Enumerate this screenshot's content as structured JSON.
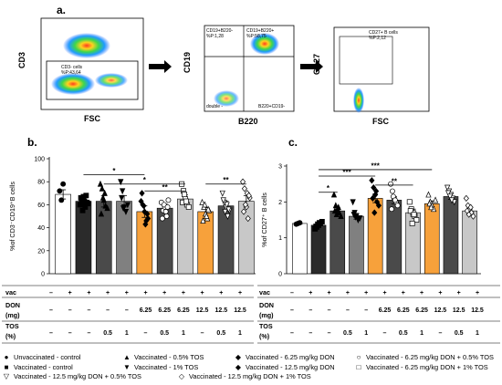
{
  "figure": {
    "panel_a": {
      "label": "a.",
      "plots": [
        {
          "ylabel": "CD3",
          "xlabel": "FSC",
          "gate_text": "CD3- cells\n%P:43,64"
        },
        {
          "ylabel": "CD19",
          "xlabel": "B220",
          "quad_texts": {
            "ul": "CD19+B220-\n%P:1,28",
            "ur": "CD19+B220+\n%P:58,75",
            "ll": "double -",
            "lr": "B220+CD19-"
          }
        },
        {
          "ylabel": "CD27",
          "xlabel": "FSC",
          "gate_text": "CD27+ B cells\n%P:2,12"
        }
      ]
    },
    "panel_b": {
      "label": "b.",
      "ylabel": "%of CD3⁻CD19⁺B cells"
    },
    "panel_c": {
      "label": "c.",
      "ylabel": "%of CD27⁺ B cells"
    },
    "table": {
      "row_labels": [
        "vac",
        "DON",
        "(mg)",
        "TOS",
        "(%)"
      ],
      "vac": [
        "–",
        "+",
        "+",
        "+",
        "+",
        "+",
        "+",
        "+",
        "+",
        "+",
        "+"
      ],
      "don": [
        "–",
        "–",
        "–",
        "–",
        "–",
        "6.25",
        "6.25",
        "6.25",
        "12.5",
        "12.5",
        "12.5"
      ],
      "tos": [
        "–",
        "–",
        "–",
        "0.5",
        "1",
        "–",
        "0.5",
        "1",
        "–",
        "0.5",
        "1"
      ]
    },
    "legend": [
      {
        "symbol": "●",
        "text": "Unvaccinated - control"
      },
      {
        "symbol": "▲",
        "text": "Vaccinated - 0.5% TOS"
      },
      {
        "symbol": "◆",
        "text": "Vaccinated - 6.25 mg/kg DON"
      },
      {
        "symbol": "○",
        "text": "Vaccinated - 6.25 mg/kg DON + 0.5% TOS"
      },
      {
        "symbol": "■",
        "text": "Vaccinated - control"
      },
      {
        "symbol": "▼",
        "text": "Vaccinated - 1%   TOS"
      },
      {
        "symbol": "◆",
        "text": "Vaccinated - 12.5 mg/kg DON"
      },
      {
        "symbol": "□",
        "text": "Vaccinated - 6.25 mg/kg DON + 1%  TOS"
      },
      {
        "symbol": "▽",
        "text": "Vaccinated - 12.5 mg/kg DON + 0.5% TOS"
      },
      {
        "symbol": "◇",
        "text": "Vaccinated - 12.5 mg/kg DON + 1%  TOS"
      }
    ],
    "colors": {
      "white": "#ffffff",
      "black": "#2b2b2b",
      "dark": "#4a4a4a",
      "mid": "#808080",
      "light": "#c8c8c8",
      "orange": "#f7a13b"
    }
  },
  "chart_data": [
    {
      "type": "bar",
      "panel": "b",
      "ylabel": "%of CD3⁻CD19⁺B cells",
      "ylim": [
        0,
        100
      ],
      "yticks": [
        0,
        20,
        40,
        60,
        80,
        100
      ],
      "groups": [
        "unvac-control",
        "vac-control",
        "vac-0.5TOS",
        "vac-1TOS",
        "vac-6.25DON",
        "vac-6.25DON+0.5TOS",
        "vac-6.25DON+1TOS",
        "vac-12.5DON",
        "vac-12.5DON+0.5TOS",
        "vac-12.5DON+1TOS"
      ],
      "values": [
        69,
        63,
        63,
        63,
        54,
        57,
        65,
        54,
        59,
        63
      ],
      "errors": [
        4,
        2.5,
        5,
        5,
        5,
        3.5,
        3.5,
        3.5,
        4,
        5
      ],
      "fills": [
        "white",
        "black",
        "dark",
        "mid",
        "orange",
        "dark",
        "light",
        "orange",
        "dark",
        "light"
      ],
      "markers": [
        "circle",
        "square",
        "triangle",
        "triangle-down",
        "diamond",
        "circle-open",
        "square-open",
        "triangle-open",
        "triangle-down-open",
        "diamond-open"
      ],
      "points": [
        [
          72,
          64,
          78
        ],
        [
          60,
          64,
          67,
          58,
          62,
          66,
          55,
          63,
          68,
          61
        ],
        [
          78,
          74,
          64,
          59,
          57,
          52,
          66,
          70
        ],
        [
          80,
          72,
          58,
          54,
          60,
          66,
          57
        ],
        [
          63,
          60,
          54,
          46,
          48,
          70,
          59,
          43,
          52
        ],
        [
          62,
          55,
          58,
          50,
          64,
          48,
          60,
          54,
          58
        ],
        [
          78,
          72,
          65,
          60,
          58,
          62,
          69,
          63
        ],
        [
          62,
          58,
          52,
          48,
          55,
          46,
          60,
          50,
          56
        ],
        [
          70,
          62,
          58,
          50,
          55,
          64,
          54,
          60,
          56
        ],
        [
          80,
          74,
          58,
          48,
          66,
          54,
          60,
          70,
          68
        ]
      ],
      "significance": [
        {
          "label": "*",
          "from": 1,
          "to": 4,
          "y": 86
        },
        {
          "label": "*",
          "from": 2,
          "to": 6,
          "y": 78
        },
        {
          "label": "**",
          "from": 4,
          "to": 6,
          "y": 72
        },
        {
          "label": "**",
          "from": 7,
          "to": 9,
          "y": 78
        }
      ]
    },
    {
      "type": "bar",
      "panel": "c",
      "ylabel": "%of CD27⁺ B cells",
      "ylim": [
        0,
        3
      ],
      "yticks": [
        0,
        1,
        2,
        3
      ],
      "groups": [
        "unvac-control",
        "vac-control",
        "vac-0.5TOS",
        "vac-1TOS",
        "vac-6.25DON",
        "vac-6.25DON+0.5TOS",
        "vac-6.25DON+1TOS",
        "vac-12.5DON",
        "vac-12.5DON+0.5TOS",
        "vac-12.5DON+1TOS"
      ],
      "values": [
        1.4,
        1.35,
        1.75,
        1.6,
        2.1,
        2.05,
        1.7,
        1.95,
        2.15,
        1.75
      ],
      "errors": [
        0.02,
        0.05,
        0.1,
        0.08,
        0.12,
        0.1,
        0.1,
        0.08,
        0.08,
        0.08
      ],
      "fills": [
        "white",
        "black",
        "dark",
        "mid",
        "orange",
        "dark",
        "light",
        "orange",
        "dark",
        "light"
      ],
      "markers": [
        "circle",
        "square",
        "triangle",
        "triangle-down",
        "diamond",
        "circle-open",
        "square-open",
        "triangle-open",
        "triangle-down-open",
        "diamond-open"
      ],
      "points": [
        [
          1.38,
          1.4,
          1.42
        ],
        [
          1.25,
          1.3,
          1.35,
          1.4,
          1.45,
          1.32,
          1.38,
          1.42
        ],
        [
          2.2,
          1.9,
          1.8,
          1.7,
          1.6,
          1.75,
          1.65,
          1.85
        ],
        [
          2.0,
          1.7,
          1.6,
          1.5,
          1.55,
          1.65,
          1.58
        ],
        [
          2.6,
          2.4,
          2.2,
          2.0,
          1.9,
          2.1,
          1.7,
          2.3
        ],
        [
          2.5,
          2.3,
          2.1,
          2.0,
          1.9,
          1.8,
          2.15,
          2.05
        ],
        [
          2.0,
          1.8,
          1.7,
          1.6,
          1.5,
          1.75,
          1.4,
          1.65
        ],
        [
          2.2,
          2.0,
          1.9,
          1.8,
          2.05,
          1.95,
          1.85
        ],
        [
          2.4,
          2.3,
          2.2,
          2.1,
          2.0,
          2.25,
          2.15,
          2.05
        ],
        [
          2.1,
          1.9,
          1.8,
          1.7,
          1.6,
          1.75,
          1.65,
          1.85
        ]
      ],
      "significance": [
        {
          "label": "***",
          "from": 1,
          "to": 7,
          "y": 2.9
        },
        {
          "label": "***",
          "from": 1,
          "to": 4,
          "y": 2.72
        },
        {
          "label": "*",
          "from": 1,
          "to": 2,
          "y": 2.27
        },
        {
          "label": "**",
          "from": 4,
          "to": 6,
          "y": 2.47
        }
      ]
    }
  ]
}
